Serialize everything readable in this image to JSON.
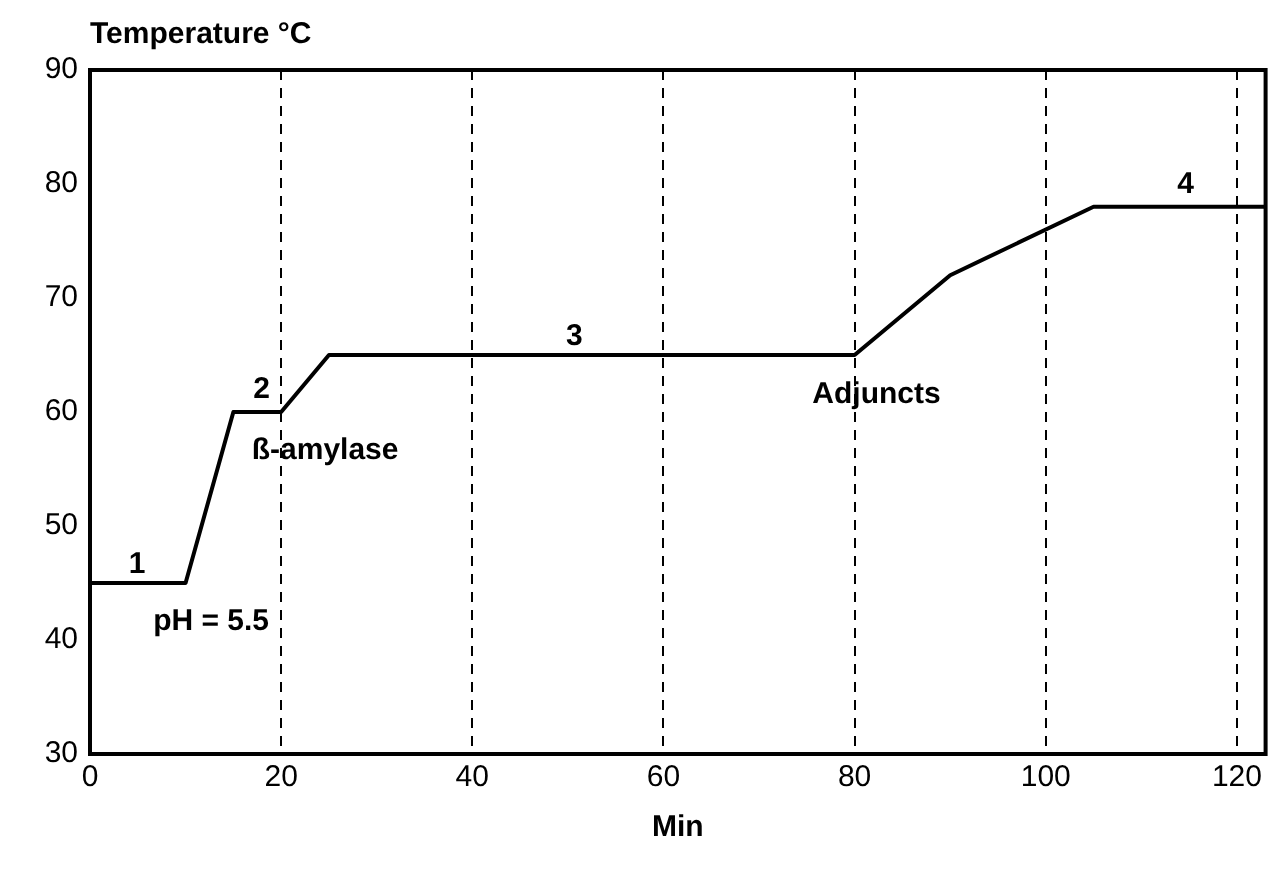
{
  "chart_data": {
    "type": "line",
    "ylabel": "Temperature °C",
    "xlabel": "Min",
    "x": [
      0,
      10,
      15,
      20,
      25,
      80,
      90,
      105,
      123
    ],
    "series": [
      {
        "color": "#000000",
        "values": [
          45,
          45,
          60,
          60,
          65,
          65,
          72,
          78,
          78
        ]
      }
    ],
    "xlim": [
      0,
      123
    ],
    "xticks": [
      0,
      20,
      40,
      60,
      80,
      100,
      120
    ],
    "ylim": [
      30,
      90
    ],
    "yticks": [
      30,
      40,
      50,
      60,
      70,
      80,
      90
    ],
    "grid": "x",
    "legend": false,
    "marker": "none",
    "line_style": "solid",
    "annotations": [
      "1",
      "pH = 5.5",
      "2",
      "ß-amylase",
      "3",
      "Adjuncts",
      "4"
    ]
  }
}
